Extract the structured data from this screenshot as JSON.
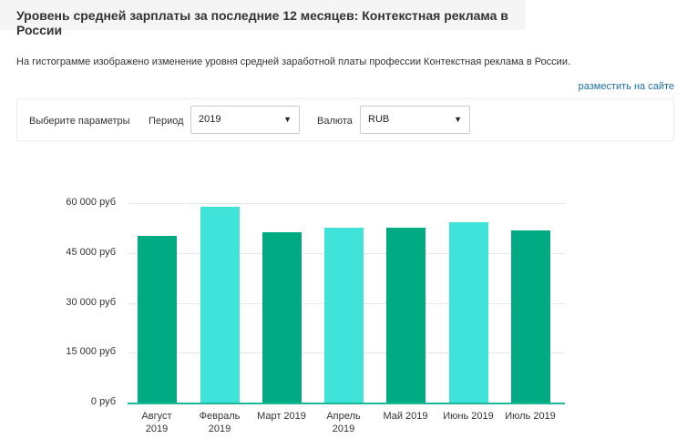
{
  "header": {
    "title": "Уровень средней зарплаты за последние 12 месяцев: Контекстная реклама в России"
  },
  "description": "На гистограмме изображено изменение уровня средней заработной платы профессии Контекстная реклама в России.",
  "embed_link": "разместить на сайте",
  "params": {
    "label": "Выберите параметры",
    "period_label": "Период",
    "period_value": "2019",
    "currency_label": "Валюта",
    "currency_value": "RUB",
    "dropdown_icon": "▼"
  },
  "colors": {
    "dark": "#00ab84",
    "light": "#40e3d7",
    "axis": "#1fb79a"
  },
  "chart_data": {
    "type": "bar",
    "title": "",
    "xlabel": "",
    "ylabel": "",
    "ylim": [
      0,
      60000
    ],
    "yticks": [
      "0 руб",
      "15 000 руб",
      "30 000 руб",
      "45 000 руб",
      "60 000 руб"
    ],
    "grid": true,
    "categories": [
      "Август 2019",
      "Февраль 2019",
      "Март 2019",
      "Апрель 2019",
      "Май 2019",
      "Июнь 2019",
      "Июль 2019"
    ],
    "category_lines": [
      [
        "Август",
        "2019"
      ],
      [
        "Февраль",
        "2019"
      ],
      [
        "Март 2019",
        ""
      ],
      [
        "Апрель",
        "2019"
      ],
      [
        "Май 2019",
        ""
      ],
      [
        "Июнь 2019",
        ""
      ],
      [
        "Июль 2019",
        ""
      ]
    ],
    "values": [
      50100,
      58900,
      51200,
      52600,
      52600,
      54200,
      51800
    ],
    "bar_colors": [
      "#00ab84",
      "#40e3d7",
      "#00ab84",
      "#40e3d7",
      "#00ab84",
      "#40e3d7",
      "#00ab84"
    ]
  }
}
